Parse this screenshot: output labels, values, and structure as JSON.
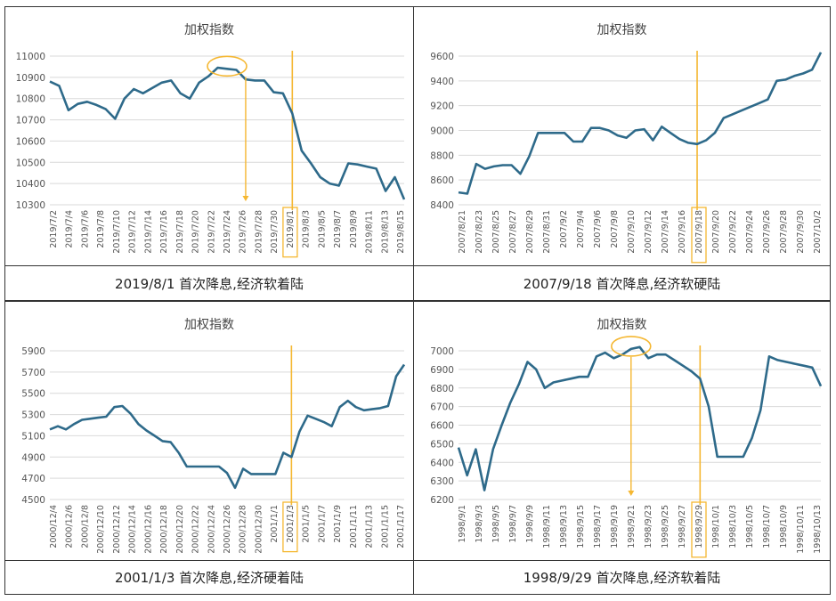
{
  "colors": {
    "line": "#2e6a8a",
    "accent": "#f5b731",
    "grid": "#d9d9d9",
    "text": "#555555"
  },
  "chart_data": [
    {
      "type": "line",
      "title": "加权指数",
      "caption": "2019/8/1 首次降息,经济软着陆",
      "ylim": [
        10300,
        11000
      ],
      "yticks": [
        "11000",
        "10900",
        "10800",
        "10700",
        "10600",
        "10500",
        "10400",
        "10300"
      ],
      "xticks": [
        "2019/7/2",
        "2019/7/4",
        "2019/7/6",
        "2019/7/8",
        "2019/7/10",
        "2019/7/12",
        "2019/7/14",
        "2019/7/16",
        "2019/7/18",
        "2019/7/20",
        "2019/7/22",
        "2019/7/24",
        "2019/7/26",
        "2019/7/28",
        "2019/7/30",
        "2019/8/1",
        "2019/8/3",
        "2019/8/5",
        "2019/8/7",
        "2019/8/9",
        "2019/8/11",
        "2019/8/13",
        "2019/8/15"
      ],
      "highlight_tick": "2019/8/1",
      "values": [
        10880,
        10860,
        10745,
        10775,
        10785,
        10770,
        10750,
        10705,
        10800,
        10845,
        10825,
        10850,
        10875,
        10885,
        10825,
        10800,
        10875,
        10905,
        10945,
        10940,
        10935,
        10890,
        10885,
        10885,
        10830,
        10825,
        10730,
        10555,
        10495,
        10430,
        10400,
        10390,
        10495,
        10490,
        10480,
        10470,
        10365,
        10430,
        10325
      ],
      "circle_index": 19,
      "arrow_index": 21,
      "vline_index": 26
    },
    {
      "type": "line",
      "title": "加权指数",
      "caption": "2007/9/18 首次降息,经济软硬陆",
      "ylim": [
        8400,
        9600
      ],
      "yticks": [
        "9600",
        "9400",
        "9200",
        "9000",
        "8800",
        "8600",
        "8400"
      ],
      "xticks": [
        "2007/8/21",
        "2007/8/23",
        "2007/8/25",
        "2007/8/27",
        "2007/8/29",
        "2007/8/31",
        "2007/9/2",
        "2007/9/4",
        "2007/9/6",
        "2007/9/8",
        "2007/9/10",
        "2007/9/12",
        "2007/9/14",
        "2007/9/16",
        "2007/9/18",
        "2007/9/20",
        "2007/9/22",
        "2007/9/24",
        "2007/9/26",
        "2007/9/28",
        "2007/9/30",
        "2007/10/2"
      ],
      "highlight_tick": "2007/9/18",
      "values": [
        8500,
        8490,
        8730,
        8690,
        8710,
        8720,
        8720,
        8650,
        8790,
        8980,
        8980,
        8980,
        8980,
        8910,
        8910,
        9020,
        9020,
        9000,
        8960,
        8940,
        9000,
        9010,
        8920,
        9030,
        8980,
        8930,
        8900,
        8890,
        8920,
        8980,
        9100,
        9130,
        9160,
        9190,
        9220,
        9250,
        9400,
        9410,
        9440,
        9460,
        9490,
        9630
      ],
      "vline_index": 27
    },
    {
      "type": "line",
      "title": "加权指数",
      "caption": "2001/1/3 首次降息,经济硬着陆",
      "ylim": [
        4500,
        5900
      ],
      "yticks": [
        "5900",
        "5700",
        "5500",
        "5300",
        "5100",
        "4900",
        "4700",
        "4500"
      ],
      "xticks": [
        "2000/12/4",
        "2000/12/6",
        "2000/12/8",
        "2000/12/10",
        "2000/12/12",
        "2000/12/14",
        "2000/12/16",
        "2000/12/18",
        "2000/12/20",
        "2000/12/22",
        "2000/12/24",
        "2000/12/26",
        "2000/12/28",
        "2000/12/30",
        "2001/1/1",
        "2001/1/3",
        "2001/1/5",
        "2001/1/7",
        "2001/1/9",
        "2001/1/11",
        "2001/1/13",
        "2001/1/15",
        "2001/1/17"
      ],
      "highlight_tick": "2001/1/3",
      "values": [
        5160,
        5190,
        5160,
        5210,
        5250,
        5260,
        5270,
        5280,
        5370,
        5380,
        5310,
        5210,
        5150,
        5100,
        5050,
        5040,
        4940,
        4810,
        4810,
        4810,
        4810,
        4810,
        4750,
        4610,
        4790,
        4740,
        4740,
        4740,
        4740,
        4940,
        4900,
        5140,
        5290,
        5260,
        5230,
        5190,
        5370,
        5430,
        5370,
        5340,
        5350,
        5360,
        5380,
        5660,
        5770
      ],
      "vline_index": 30
    },
    {
      "type": "line",
      "title": "加权指数",
      "caption": "1998/9/29 首次降息,经济软着陆",
      "ylim": [
        6200,
        7000
      ],
      "yticks": [
        "7000",
        "6900",
        "6800",
        "6700",
        "6600",
        "6500",
        "6400",
        "6300",
        "6200"
      ],
      "xticks": [
        "1998/9/1",
        "1998/9/3",
        "1998/9/5",
        "1998/9/7",
        "1998/9/9",
        "1998/9/11",
        "1998/9/13",
        "1998/9/15",
        "1998/9/17",
        "1998/9/19",
        "1998/9/21",
        "1998/9/23",
        "1998/9/25",
        "1998/9/27",
        "1998/9/29",
        "1998/10/1",
        "1998/10/3",
        "1998/10/5",
        "1998/10/7",
        "1998/10/9",
        "1998/10/11",
        "1998/10/13"
      ],
      "highlight_tick": "1998/9/29",
      "values": [
        6480,
        6330,
        6470,
        6250,
        6470,
        6600,
        6720,
        6820,
        6940,
        6900,
        6800,
        6830,
        6840,
        6850,
        6860,
        6860,
        6970,
        6990,
        6960,
        6980,
        7010,
        7020,
        6960,
        6980,
        6980,
        6950,
        6920,
        6890,
        6850,
        6700,
        6430,
        6430,
        6430,
        6430,
        6530,
        6680,
        6970,
        6950,
        6940,
        6930,
        6920,
        6910,
        6810
      ],
      "circle_index": 20,
      "arrow_index": 20,
      "vline_index": 28
    }
  ]
}
